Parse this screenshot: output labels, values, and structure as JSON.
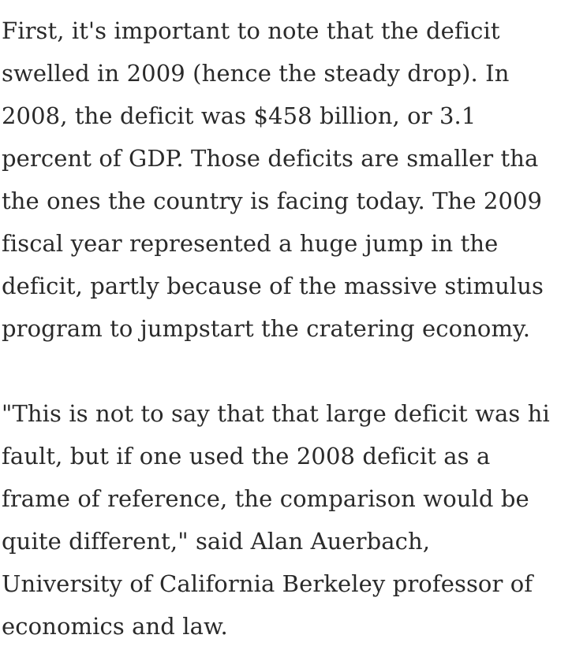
{
  "article": {
    "paragraphs": [
      {
        "lines": [
          "First, it's important to note that the deficit",
          "swelled in 2009 (hence the steady drop). In",
          "2008, the deficit was $458 billion, or 3.1",
          "percent of GDP. Those deficits are smaller tha",
          "the ones the country is facing today. The 2009",
          "fiscal year represented a huge jump in the",
          "deficit, partly because of the massive stimulus",
          "program to jumpstart the cratering economy."
        ]
      },
      {
        "lines": [
          "\"This is not to say that that large deficit was hi",
          "fault, but if one used the 2008 deficit as a",
          "frame of reference, the comparison would be",
          "quite different,\" said Alan Auerbach,",
          "University of California Berkeley professor of",
          "economics and law."
        ]
      }
    ]
  }
}
